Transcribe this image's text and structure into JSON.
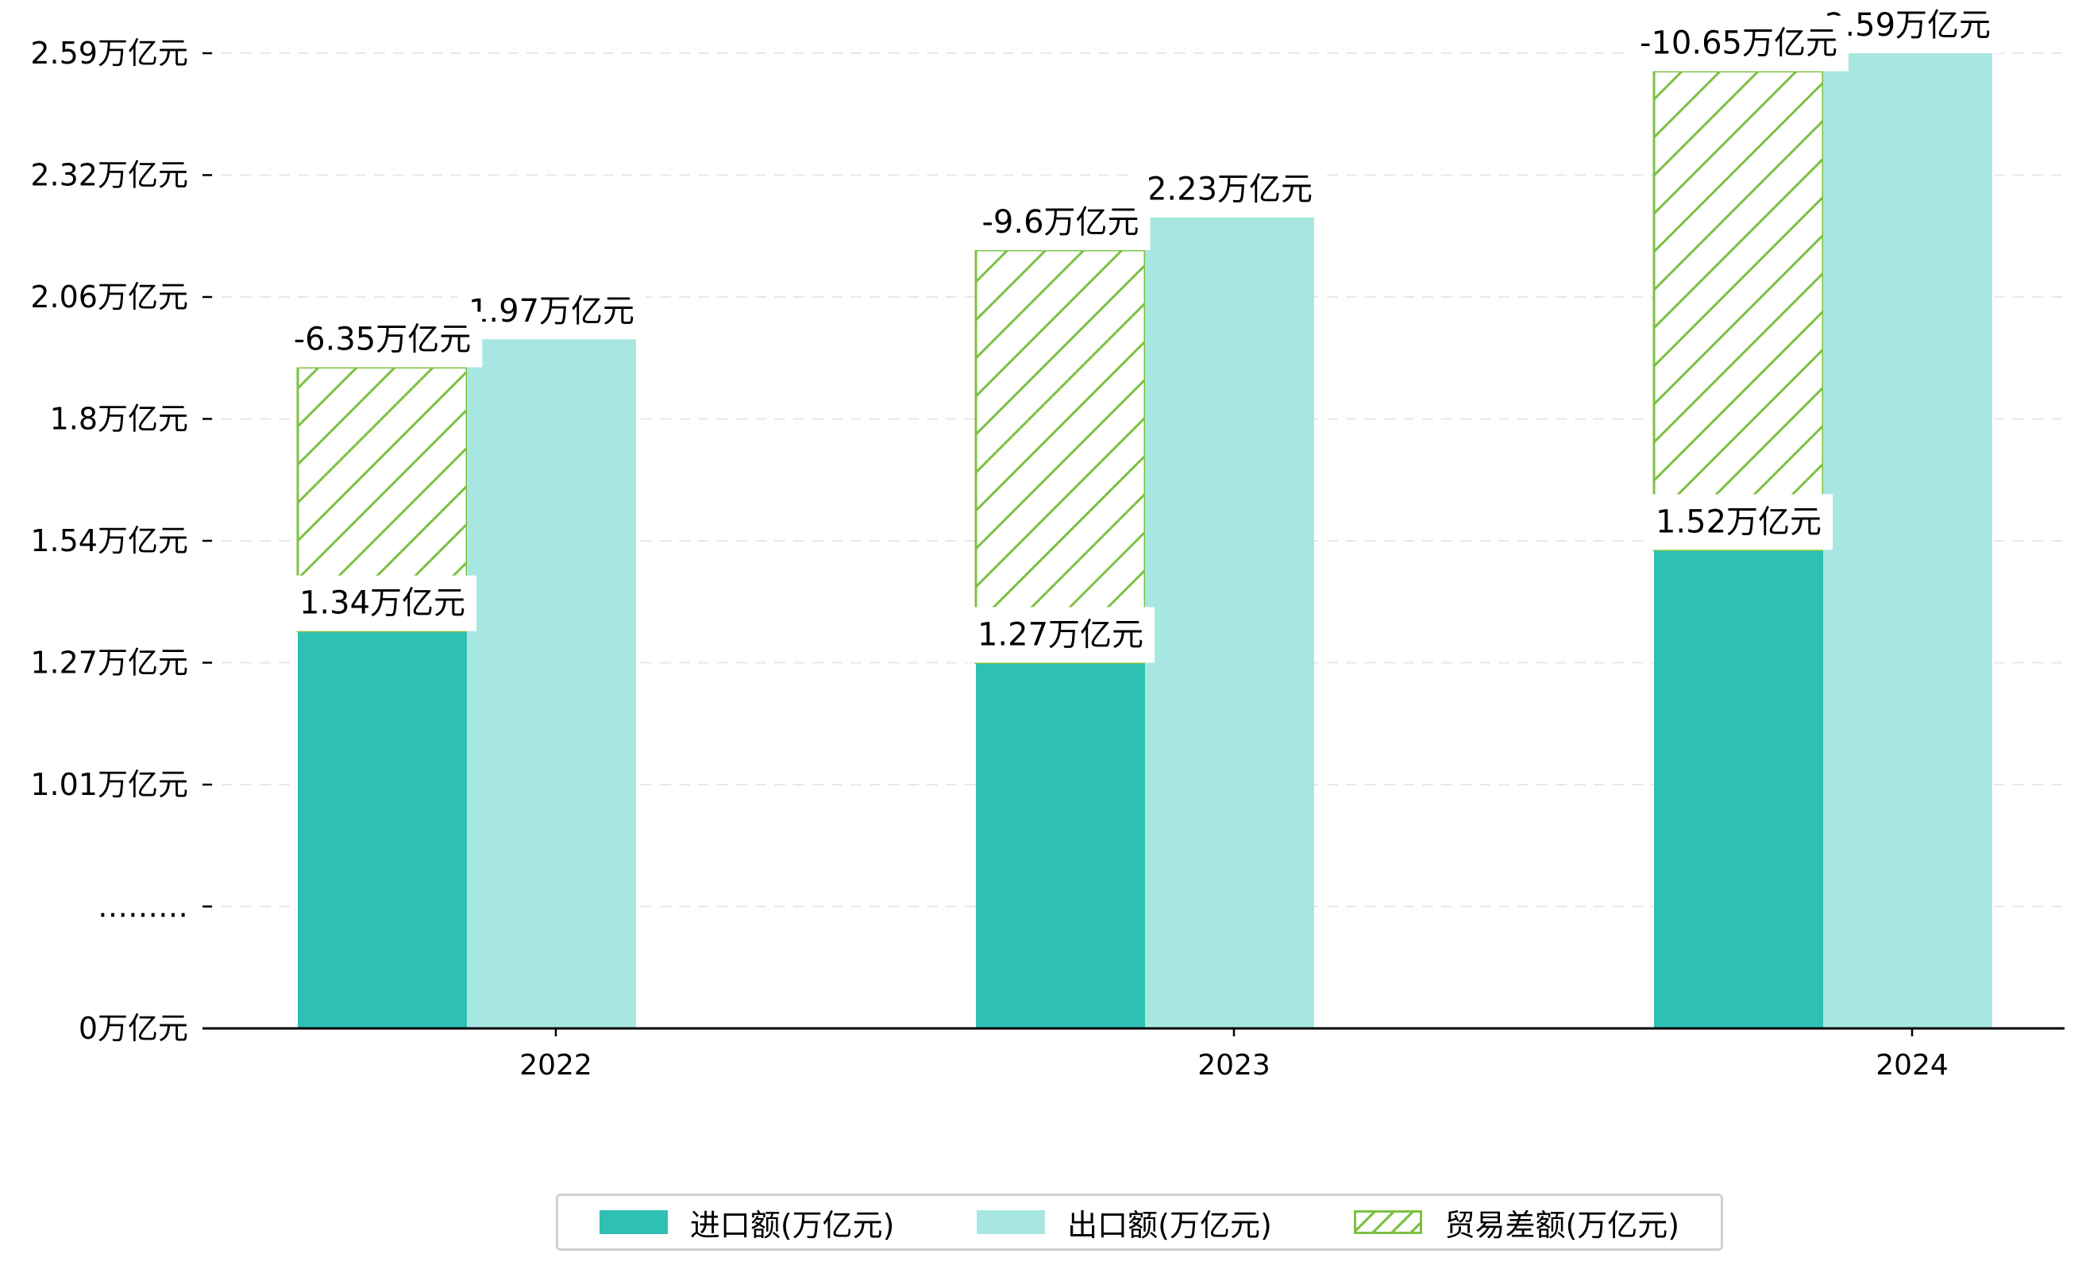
{
  "chart_data": {
    "type": "bar",
    "categories": [
      "2022",
      "2023",
      "2024"
    ],
    "series": [
      {
        "name": "进口额(万亿元)",
        "values": [
          1.34,
          1.27,
          1.52
        ],
        "labels": [
          "1.34万亿元",
          "1.27万亿元",
          "1.52万亿元"
        ],
        "color": "#2ec0b2"
      },
      {
        "name": "出口额(万亿元)",
        "values": [
          1.97,
          2.23,
          2.59
        ],
        "labels": [
          "1.97万亿元",
          "2.23万亿元",
          "2.59万亿元"
        ],
        "color": "#a8e7e1"
      },
      {
        "name": "贸易差额(万亿元)",
        "values": [
          -6.35,
          -9.6,
          -10.65
        ],
        "labels": [
          "-6.35万亿元",
          "-9.6万亿元",
          "-10.65万亿元"
        ],
        "color": "#7cc142",
        "stack_top_display": [
          1.91,
          2.16,
          2.55
        ]
      }
    ],
    "y_axis": {
      "ticks": [
        {
          "label": "0万亿元",
          "value": 0
        },
        {
          "label": "………",
          "value": 0.26
        },
        {
          "label": "1.01万亿元",
          "value": 1.01
        },
        {
          "label": "1.27万亿元",
          "value": 1.27
        },
        {
          "label": "1.54万亿元",
          "value": 1.54
        },
        {
          "label": "1.8万亿元",
          "value": 1.8
        },
        {
          "label": "2.06万亿元",
          "value": 2.06
        },
        {
          "label": "2.32万亿元",
          "value": 2.32
        },
        {
          "label": "2.59万亿元",
          "value": 2.59
        }
      ],
      "broken": true,
      "display_range": [
        0,
        2.59
      ]
    },
    "grid": "horizontal dashed",
    "legend_position": "bottom-center",
    "title": "",
    "xlabel": "",
    "ylabel": ""
  }
}
